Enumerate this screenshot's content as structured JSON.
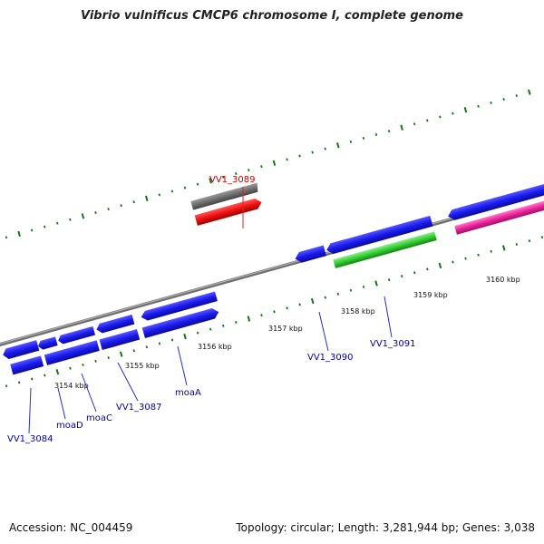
{
  "title": "Vibrio vulnificus CMCP6 chromosome I, complete genome",
  "footer": {
    "accession": "Accession: NC_004459",
    "summary": "Topology: circular; Length: 3,281,944 bp; Genes: 3,038"
  },
  "colors": {
    "forward": "#1a1aee",
    "selected": "#ee1111",
    "grey": "#777777",
    "green": "#33cc33",
    "magenta": "#ee2299",
    "tick": "#117711",
    "backbone": "#888888",
    "label_blue": "#0000aa",
    "label_red": "#cc0000"
  },
  "scale_labels": [
    "3154 kbp",
    "3155 kbp",
    "3156 kbp",
    "3157 kbp",
    "3158 kbp",
    "3159 kbp",
    "3160 kbp"
  ],
  "genes": [
    {
      "name": "VV1_3084"
    },
    {
      "name": "moaD"
    },
    {
      "name": "moaC"
    },
    {
      "name": "VV1_3087"
    },
    {
      "name": "moaA"
    },
    {
      "name": "VV1_3089",
      "selected": true
    },
    {
      "name": "VV1_3090"
    },
    {
      "name": "VV1_3091"
    }
  ]
}
